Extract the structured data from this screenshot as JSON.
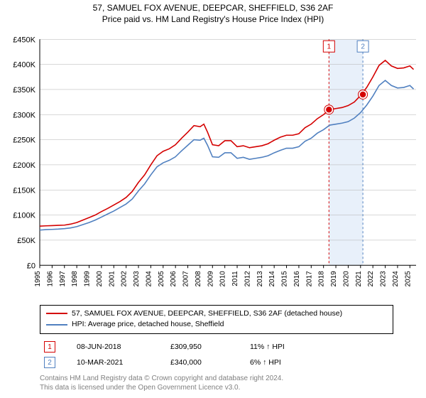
{
  "title": "57, SAMUEL FOX AVENUE, DEEPCAR, SHEFFIELD, S36 2AF",
  "subtitle": "Price paid vs. HM Land Registry's House Price Index (HPI)",
  "chart": {
    "type": "line",
    "background_color": "#ffffff",
    "grid_color": "#b0b0b0",
    "axis_color": "#000000",
    "y": {
      "min": 0,
      "max": 450000,
      "tick_step": 50000,
      "ticks": [
        {
          "v": 0,
          "label": "£0"
        },
        {
          "v": 50000,
          "label": "£50K"
        },
        {
          "v": 100000,
          "label": "£100K"
        },
        {
          "v": 150000,
          "label": "£150K"
        },
        {
          "v": 200000,
          "label": "£200K"
        },
        {
          "v": 250000,
          "label": "£250K"
        },
        {
          "v": 300000,
          "label": "£300K"
        },
        {
          "v": 350000,
          "label": "£350K"
        },
        {
          "v": 400000,
          "label": "£400K"
        },
        {
          "v": 450000,
          "label": "£450K"
        }
      ],
      "label_fontsize": 11
    },
    "x": {
      "min": 1995,
      "max": 2025.5,
      "ticks": [
        1995,
        1996,
        1997,
        1998,
        1999,
        2000,
        2001,
        2002,
        2003,
        2004,
        2005,
        2006,
        2007,
        2008,
        2009,
        2010,
        2011,
        2012,
        2013,
        2014,
        2015,
        2016,
        2017,
        2018,
        2019,
        2020,
        2021,
        2022,
        2023,
        2024,
        2025
      ],
      "label_fontsize": 10
    },
    "series": [
      {
        "name": "red",
        "color": "#d40000",
        "label": "57, SAMUEL FOX AVENUE, DEEPCAR, SHEFFIELD, S36 2AF (detached house)",
        "stroke_width": 1.6,
        "points": [
          [
            1995,
            78000
          ],
          [
            1995.5,
            78500
          ],
          [
            1996,
            79000
          ],
          [
            1996.5,
            79500
          ],
          [
            1997,
            80000
          ],
          [
            1997.5,
            82000
          ],
          [
            1998,
            85000
          ],
          [
            1998.5,
            90000
          ],
          [
            1999,
            95000
          ],
          [
            1999.5,
            100000
          ],
          [
            2000,
            107000
          ],
          [
            2000.5,
            113000
          ],
          [
            2001,
            120000
          ],
          [
            2001.5,
            127000
          ],
          [
            2002,
            135000
          ],
          [
            2002.5,
            147000
          ],
          [
            2003,
            165000
          ],
          [
            2003.5,
            180000
          ],
          [
            2004,
            200000
          ],
          [
            2004.5,
            218000
          ],
          [
            2005,
            227000
          ],
          [
            2005.5,
            232000
          ],
          [
            2006,
            240000
          ],
          [
            2006.5,
            253000
          ],
          [
            2007,
            265000
          ],
          [
            2007.5,
            278000
          ],
          [
            2008,
            276000
          ],
          [
            2008.3,
            281000
          ],
          [
            2008.6,
            265000
          ],
          [
            2009,
            240000
          ],
          [
            2009.5,
            238000
          ],
          [
            2010,
            248000
          ],
          [
            2010.5,
            248000
          ],
          [
            2011,
            236000
          ],
          [
            2011.5,
            238000
          ],
          [
            2012,
            234000
          ],
          [
            2012.5,
            236000
          ],
          [
            2013,
            238000
          ],
          [
            2013.5,
            242000
          ],
          [
            2014,
            249000
          ],
          [
            2014.5,
            255000
          ],
          [
            2015,
            259000
          ],
          [
            2015.5,
            259000
          ],
          [
            2016,
            262000
          ],
          [
            2016.5,
            274000
          ],
          [
            2017,
            281000
          ],
          [
            2017.5,
            292000
          ],
          [
            2018,
            300000
          ],
          [
            2018.5,
            310000
          ],
          [
            2019,
            312000
          ],
          [
            2019.5,
            314000
          ],
          [
            2020,
            318000
          ],
          [
            2020.5,
            325000
          ],
          [
            2021,
            338000
          ],
          [
            2021.5,
            354000
          ],
          [
            2022,
            375000
          ],
          [
            2022.5,
            398000
          ],
          [
            2023,
            408000
          ],
          [
            2023.5,
            397000
          ],
          [
            2024,
            392000
          ],
          [
            2024.5,
            393000
          ],
          [
            2025,
            397000
          ],
          [
            2025.3,
            390000
          ]
        ]
      },
      {
        "name": "blue",
        "color": "#5080c0",
        "label": "HPI: Average price, detached house, Sheffield",
        "stroke_width": 1.6,
        "points": [
          [
            1995,
            70000
          ],
          [
            1995.5,
            71000
          ],
          [
            1996,
            71500
          ],
          [
            1996.5,
            72000
          ],
          [
            1997,
            73000
          ],
          [
            1997.5,
            74500
          ],
          [
            1998,
            77000
          ],
          [
            1998.5,
            81000
          ],
          [
            1999,
            85000
          ],
          [
            1999.5,
            90000
          ],
          [
            2000,
            96000
          ],
          [
            2000.5,
            102000
          ],
          [
            2001,
            108000
          ],
          [
            2001.5,
            115000
          ],
          [
            2002,
            122000
          ],
          [
            2002.5,
            132000
          ],
          [
            2003,
            148000
          ],
          [
            2003.5,
            162000
          ],
          [
            2004,
            180000
          ],
          [
            2004.5,
            196000
          ],
          [
            2005,
            204000
          ],
          [
            2005.5,
            209000
          ],
          [
            2006,
            216000
          ],
          [
            2006.5,
            228000
          ],
          [
            2007,
            239000
          ],
          [
            2007.5,
            250000
          ],
          [
            2008,
            249000
          ],
          [
            2008.3,
            253000
          ],
          [
            2008.6,
            239000
          ],
          [
            2009,
            216000
          ],
          [
            2009.5,
            215000
          ],
          [
            2010,
            224000
          ],
          [
            2010.5,
            224000
          ],
          [
            2011,
            213000
          ],
          [
            2011.5,
            215000
          ],
          [
            2012,
            211000
          ],
          [
            2012.5,
            213000
          ],
          [
            2013,
            215000
          ],
          [
            2013.5,
            218000
          ],
          [
            2014,
            224000
          ],
          [
            2014.5,
            229000
          ],
          [
            2015,
            233000
          ],
          [
            2015.5,
            233000
          ],
          [
            2016,
            236000
          ],
          [
            2016.5,
            247000
          ],
          [
            2017,
            253000
          ],
          [
            2017.5,
            263000
          ],
          [
            2018,
            270000
          ],
          [
            2018.5,
            279000
          ],
          [
            2019,
            281000
          ],
          [
            2019.5,
            283000
          ],
          [
            2020,
            286000
          ],
          [
            2020.5,
            293000
          ],
          [
            2021,
            304000
          ],
          [
            2021.5,
            319000
          ],
          [
            2022,
            337000
          ],
          [
            2022.5,
            358000
          ],
          [
            2023,
            368000
          ],
          [
            2023.5,
            358000
          ],
          [
            2024,
            353000
          ],
          [
            2024.5,
            354000
          ],
          [
            2025,
            358000
          ],
          [
            2025.3,
            351000
          ]
        ]
      }
    ],
    "markers": [
      {
        "id": "1",
        "x": 2018.44,
        "y": 309950,
        "date": "08-JUN-2018",
        "price": "£309,950",
        "delta": "11% ↑ HPI",
        "line_color": "#d40000",
        "box_border": "#d40000",
        "box_text_color": "#d40000",
        "dot_fill": "#d40000",
        "dot_ring": "#d40000"
      },
      {
        "id": "2",
        "x": 2021.19,
        "y": 340000,
        "date": "10-MAR-2021",
        "price": "£340,000",
        "delta": "6% ↑ HPI",
        "line_color": "#5080c0",
        "box_border": "#5080c0",
        "box_text_color": "#5080c0",
        "dot_fill": "#d40000",
        "dot_ring": "#d40000"
      }
    ],
    "shade": {
      "from_idx": 0,
      "to_idx": 1,
      "color": "#e8f0fa"
    }
  },
  "footer_line1": "Contains HM Land Registry data © Crown copyright and database right 2024.",
  "footer_line2": "This data is licensed under the Open Government Licence v3.0."
}
